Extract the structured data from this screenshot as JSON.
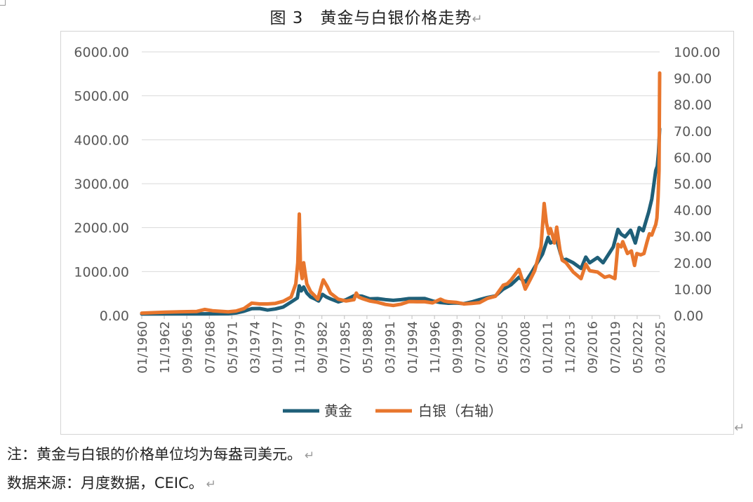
{
  "title": "图 3　黄金与白银价格走势",
  "return_mark": "↵",
  "notes": {
    "note1": "注：黄金与白银的价格单位均为每盎司美元。",
    "note2": "数据来源：月度数据，CEIC。"
  },
  "colors": {
    "gold": "#1f5f78",
    "silver": "#e8762d",
    "grid": "#d9d9d9",
    "axis_text": "#595959"
  },
  "chart_data": {
    "type": "line",
    "title": "",
    "grid": true,
    "legend_position": "bottom",
    "y_left": {
      "min": 0,
      "max": 6000,
      "ticks": [
        "0.00",
        "1000.00",
        "2000.00",
        "3000.00",
        "4000.00",
        "5000.00",
        "6000.00"
      ]
    },
    "y_right": {
      "min": 0,
      "max": 100,
      "ticks": [
        "0.00",
        "10.00",
        "20.00",
        "30.00",
        "40.00",
        "50.00",
        "60.00",
        "70.00",
        "80.00",
        "90.00",
        "100.00"
      ]
    },
    "x_range": [
      1960.0,
      2025.9
    ],
    "x_tick_labels": [
      "01/1960",
      "11/1962",
      "09/1965",
      "07/1968",
      "05/1971",
      "03/1974",
      "01/1977",
      "11/1979",
      "09/1982",
      "07/1985",
      "05/1988",
      "03/1991",
      "01/1994",
      "11/1996",
      "09/1999",
      "07/2002",
      "05/2005",
      "03/2008",
      "01/2011",
      "11/2013",
      "09/2016",
      "07/2019",
      "05/2022",
      "03/2025"
    ],
    "series": [
      {
        "name": "黄金",
        "axis": "left",
        "color": "#1f5f78",
        "points": [
          [
            1960.0,
            35
          ],
          [
            1968.0,
            39
          ],
          [
            1971.0,
            41
          ],
          [
            1972.0,
            58
          ],
          [
            1973.0,
            97
          ],
          [
            1974.0,
            154
          ],
          [
            1975.0,
            160
          ],
          [
            1976.0,
            125
          ],
          [
            1977.0,
            148
          ],
          [
            1978.0,
            193
          ],
          [
            1979.0,
            307
          ],
          [
            1979.8,
            400
          ],
          [
            1980.05,
            675
          ],
          [
            1980.3,
            560
          ],
          [
            1980.6,
            650
          ],
          [
            1981.0,
            510
          ],
          [
            1981.5,
            420
          ],
          [
            1982.0,
            380
          ],
          [
            1982.5,
            330
          ],
          [
            1983.0,
            480
          ],
          [
            1983.5,
            420
          ],
          [
            1984.0,
            380
          ],
          [
            1985.0,
            310
          ],
          [
            1986.0,
            360
          ],
          [
            1987.0,
            450
          ],
          [
            1988.0,
            440
          ],
          [
            1989.0,
            380
          ],
          [
            1990.0,
            385
          ],
          [
            1991.0,
            360
          ],
          [
            1992.0,
            345
          ],
          [
            1993.0,
            360
          ],
          [
            1994.0,
            385
          ],
          [
            1996.0,
            388
          ],
          [
            1997.0,
            330
          ],
          [
            1998.0,
            295
          ],
          [
            1999.0,
            280
          ],
          [
            2000.0,
            285
          ],
          [
            2001.0,
            270
          ],
          [
            2002.0,
            310
          ],
          [
            2003.0,
            363
          ],
          [
            2004.0,
            410
          ],
          [
            2005.0,
            445
          ],
          [
            2006.0,
            600
          ],
          [
            2007.0,
            700
          ],
          [
            2008.0,
            870
          ],
          [
            2008.8,
            760
          ],
          [
            2009.5,
            950
          ],
          [
            2010.0,
            1100
          ],
          [
            2011.0,
            1400
          ],
          [
            2011.7,
            1780
          ],
          [
            2012.0,
            1650
          ],
          [
            2012.8,
            1720
          ],
          [
            2013.3,
            1400
          ],
          [
            2013.6,
            1250
          ],
          [
            2014.0,
            1280
          ],
          [
            2014.9,
            1200
          ],
          [
            2015.9,
            1070
          ],
          [
            2016.5,
            1330
          ],
          [
            2017.0,
            1200
          ],
          [
            2018.0,
            1320
          ],
          [
            2018.7,
            1200
          ],
          [
            2019.5,
            1420
          ],
          [
            2020.0,
            1560
          ],
          [
            2020.6,
            1960
          ],
          [
            2021.0,
            1850
          ],
          [
            2021.5,
            1790
          ],
          [
            2022.2,
            1940
          ],
          [
            2022.8,
            1650
          ],
          [
            2023.3,
            2000
          ],
          [
            2023.8,
            1930
          ],
          [
            2024.0,
            2050
          ],
          [
            2024.5,
            2350
          ],
          [
            2024.9,
            2650
          ],
          [
            2025.1,
            2900
          ],
          [
            2025.4,
            3300
          ],
          [
            2025.6,
            3400
          ],
          [
            2025.75,
            3700
          ],
          [
            2025.9,
            4250
          ]
        ]
      },
      {
        "name": "白银（右轴）",
        "axis": "right",
        "color": "#e8762d",
        "points": [
          [
            1960.0,
            0.91
          ],
          [
            1963.0,
            1.28
          ],
          [
            1967.0,
            1.55
          ],
          [
            1968.0,
            2.3
          ],
          [
            1969.0,
            1.8
          ],
          [
            1971.0,
            1.4
          ],
          [
            1972.0,
            1.7
          ],
          [
            1973.0,
            2.6
          ],
          [
            1974.0,
            4.7
          ],
          [
            1975.0,
            4.4
          ],
          [
            1976.0,
            4.4
          ],
          [
            1977.0,
            4.6
          ],
          [
            1978.0,
            5.4
          ],
          [
            1979.0,
            7.0
          ],
          [
            1979.6,
            12.0
          ],
          [
            1979.85,
            20.0
          ],
          [
            1980.05,
            38.5
          ],
          [
            1980.2,
            18.0
          ],
          [
            1980.4,
            14.0
          ],
          [
            1980.6,
            20.0
          ],
          [
            1980.8,
            16.0
          ],
          [
            1981.0,
            12.0
          ],
          [
            1981.5,
            9.0
          ],
          [
            1982.0,
            7.5
          ],
          [
            1982.4,
            6.2
          ],
          [
            1982.8,
            10.5
          ],
          [
            1983.1,
            13.5
          ],
          [
            1983.6,
            11.0
          ],
          [
            1984.0,
            8.5
          ],
          [
            1985.0,
            6.2
          ],
          [
            1986.0,
            5.5
          ],
          [
            1987.0,
            6.0
          ],
          [
            1987.3,
            8.5
          ],
          [
            1987.6,
            7.0
          ],
          [
            1988.0,
            6.5
          ],
          [
            1989.0,
            5.5
          ],
          [
            1990.0,
            5.0
          ],
          [
            1991.0,
            4.2
          ],
          [
            1992.0,
            3.8
          ],
          [
            1993.0,
            4.3
          ],
          [
            1994.0,
            5.3
          ],
          [
            1995.0,
            5.2
          ],
          [
            1996.0,
            5.2
          ],
          [
            1997.0,
            4.8
          ],
          [
            1998.0,
            6.2
          ],
          [
            1998.5,
            5.5
          ],
          [
            1999.0,
            5.2
          ],
          [
            2000.0,
            5.0
          ],
          [
            2001.0,
            4.4
          ],
          [
            2002.0,
            4.6
          ],
          [
            2003.0,
            4.9
          ],
          [
            2004.0,
            6.5
          ],
          [
            2005.0,
            7.3
          ],
          [
            2006.0,
            11.5
          ],
          [
            2006.5,
            12.0
          ],
          [
            2007.0,
            13.5
          ],
          [
            2008.0,
            17.5
          ],
          [
            2008.8,
            10.0
          ],
          [
            2009.5,
            14.0
          ],
          [
            2010.0,
            17.0
          ],
          [
            2010.8,
            26.0
          ],
          [
            2011.2,
            42.5
          ],
          [
            2011.5,
            35.0
          ],
          [
            2011.8,
            31.0
          ],
          [
            2012.0,
            33.0
          ],
          [
            2012.3,
            30.0
          ],
          [
            2012.5,
            27.5
          ],
          [
            2012.8,
            33.5
          ],
          [
            2013.2,
            25.0
          ],
          [
            2013.5,
            21.0
          ],
          [
            2014.0,
            20.0
          ],
          [
            2014.9,
            16.5
          ],
          [
            2015.9,
            14.0
          ],
          [
            2016.5,
            19.5
          ],
          [
            2017.0,
            17.0
          ],
          [
            2018.0,
            16.5
          ],
          [
            2018.9,
            14.5
          ],
          [
            2019.5,
            15.0
          ],
          [
            2020.2,
            14.0
          ],
          [
            2020.6,
            27.0
          ],
          [
            2021.0,
            26.0
          ],
          [
            2021.2,
            28.0
          ],
          [
            2021.8,
            23.5
          ],
          [
            2022.3,
            24.5
          ],
          [
            2022.7,
            19.0
          ],
          [
            2023.0,
            23.5
          ],
          [
            2023.5,
            23.0
          ],
          [
            2023.9,
            23.5
          ],
          [
            2024.3,
            28.0
          ],
          [
            2024.6,
            31.0
          ],
          [
            2024.9,
            30.5
          ],
          [
            2025.2,
            33.0
          ],
          [
            2025.4,
            34.5
          ],
          [
            2025.55,
            37.0
          ],
          [
            2025.7,
            45.0
          ],
          [
            2025.82,
            55.0
          ],
          [
            2025.9,
            92.0
          ]
        ]
      }
    ]
  }
}
